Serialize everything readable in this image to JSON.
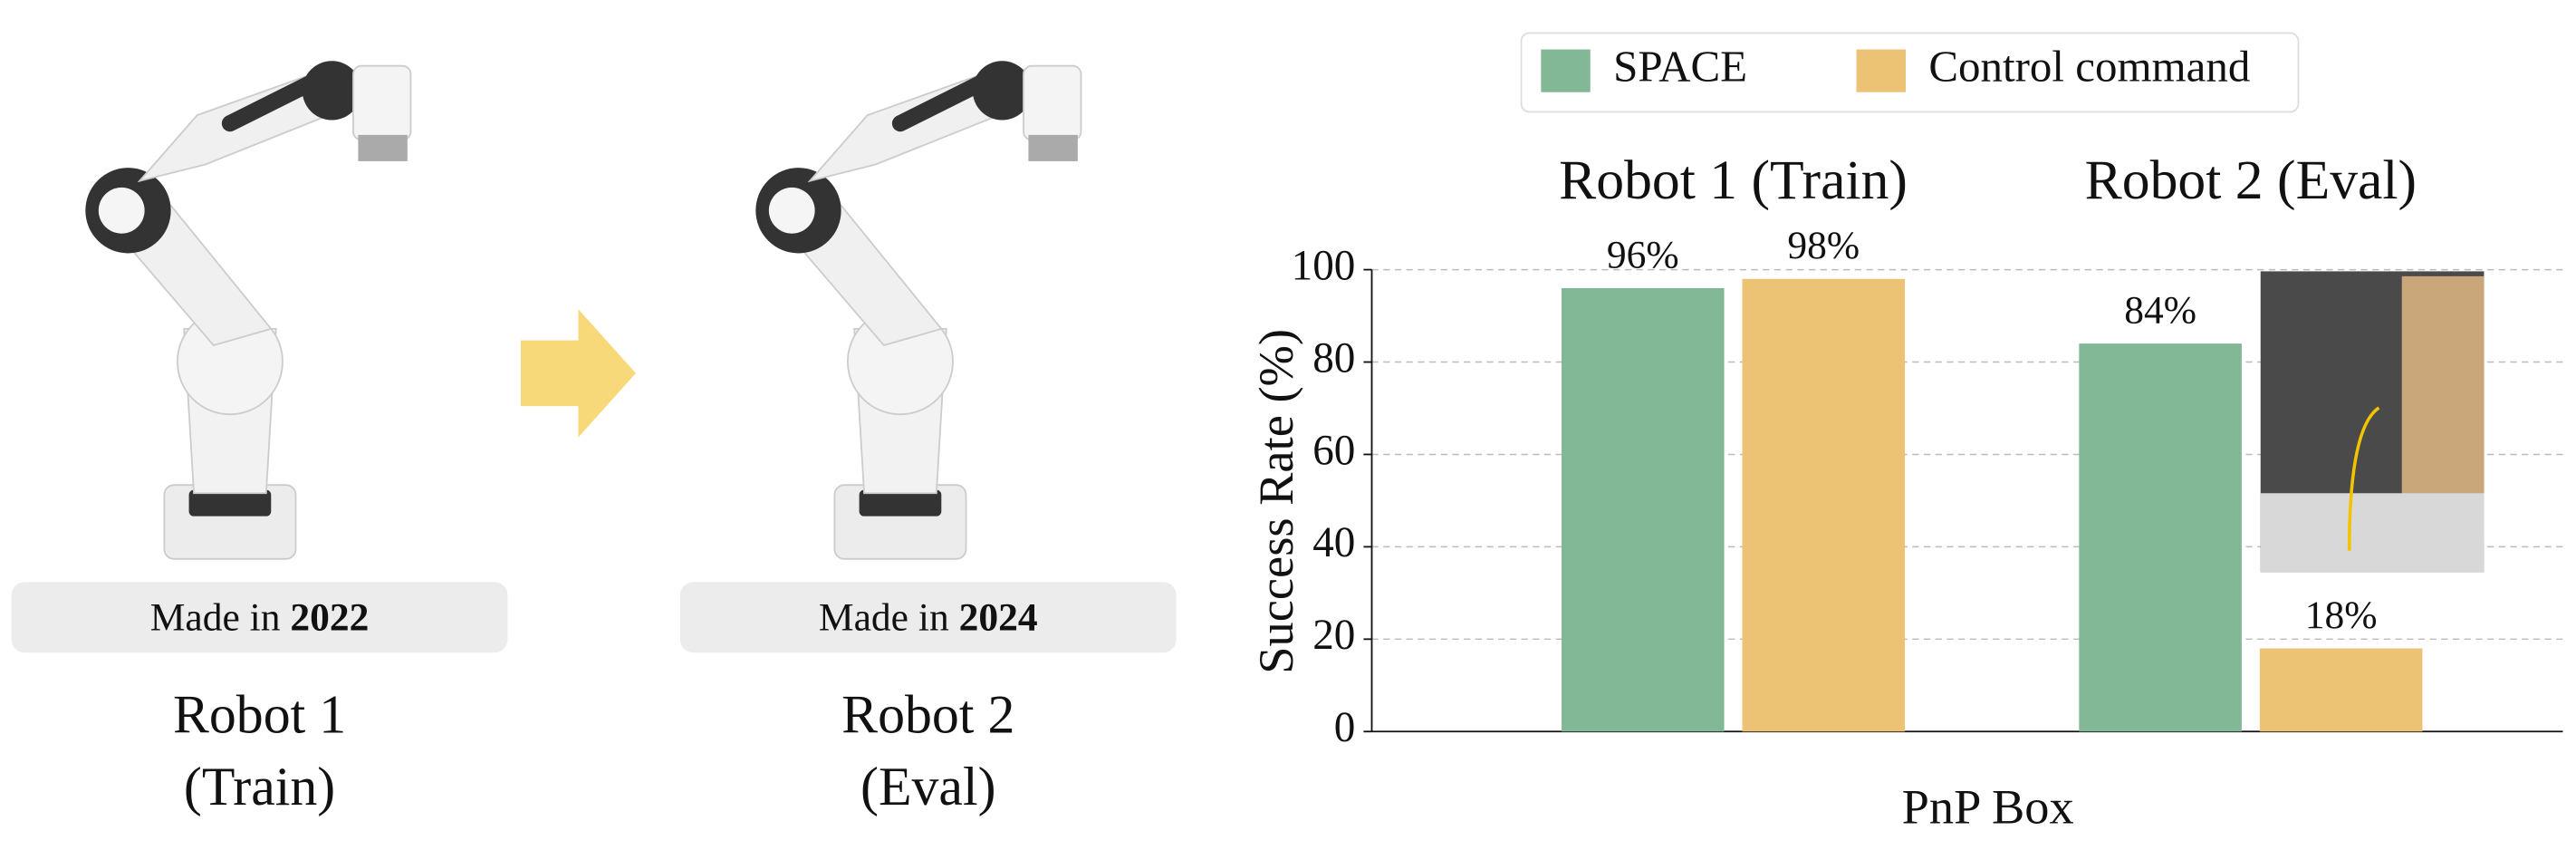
{
  "robots": [
    {
      "badge_prefix": "Made in",
      "year": "2022",
      "name": "Robot 1",
      "role": "(Train)"
    },
    {
      "badge_prefix": "Made in",
      "year": "2024",
      "name": "Robot 2",
      "role": "(Eval)"
    }
  ],
  "chart_data": {
    "type": "bar",
    "categories": [
      "Robot 1 (Train)",
      "Robot 2 (Eval)"
    ],
    "series": [
      {
        "name": "SPACE",
        "color": "#82b896",
        "values": [
          96,
          84
        ],
        "value_labels": [
          "96%",
          "84%"
        ]
      },
      {
        "name": "Control command",
        "color": "#ecc375",
        "values": [
          98,
          18
        ],
        "value_labels": [
          "98%",
          "18%"
        ]
      }
    ],
    "ylabel": "Success Rate (%)",
    "xlabel": "PnP Box",
    "ylim": [
      0,
      100
    ],
    "yticks": [
      0,
      20,
      40,
      60,
      80,
      100
    ],
    "grid": true
  }
}
